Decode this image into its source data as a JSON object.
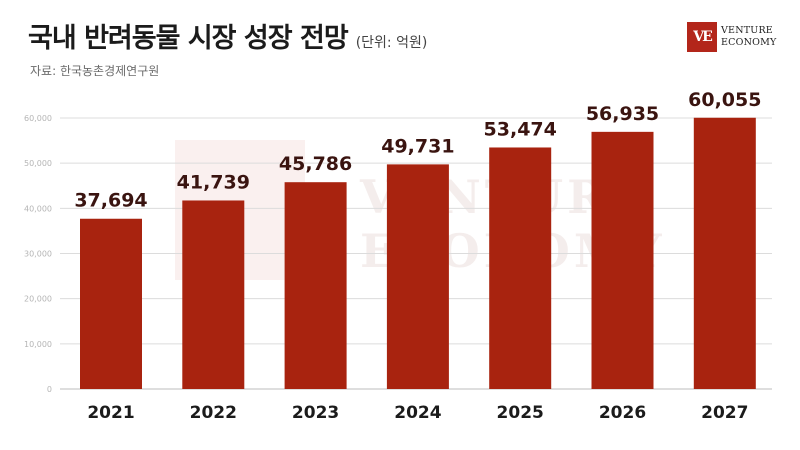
{
  "header": {
    "title": "국내 반려동물 시장 성장 전망",
    "unit": "(단위: 억원)",
    "source": "자료: 한국농촌경제연구원"
  },
  "logo": {
    "mark": "VE",
    "line1": "VENTURE",
    "line2": "ECONOMY",
    "color": "#b3261a"
  },
  "watermark": {
    "line1": "VENTURE",
    "line2": "ECONOMY"
  },
  "chart_data": {
    "type": "bar",
    "title": "국내 반려동물 시장 성장 전망",
    "ylabel": "",
    "xlabel": "",
    "categories": [
      "2021",
      "2022",
      "2023",
      "2024",
      "2025",
      "2026",
      "2027"
    ],
    "values": [
      37694,
      41739,
      45786,
      49731,
      53474,
      56935,
      60055
    ],
    "value_labels": [
      "37,694",
      "41,739",
      "45,786",
      "49,731",
      "53,474",
      "56,935",
      "60,055"
    ],
    "ylim": [
      0,
      60000
    ],
    "yticks": [
      0,
      10000,
      20000,
      30000,
      40000,
      50000,
      60000
    ],
    "ytick_labels": [
      "0",
      "10,000",
      "20,000",
      "30,000",
      "40,000",
      "50,000",
      "60,000"
    ],
    "grid": true,
    "bar_color": "#a8230f"
  }
}
